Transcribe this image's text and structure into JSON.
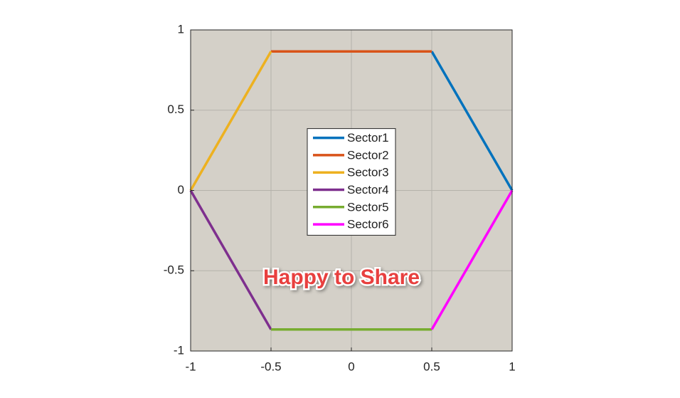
{
  "chart_data": {
    "type": "line",
    "annotation": "Happy to Share",
    "xlim": [
      -1,
      1
    ],
    "ylim": [
      -1,
      1
    ],
    "xticks": [
      -1,
      -0.5,
      0,
      0.5,
      1
    ],
    "yticks": [
      -1,
      -0.5,
      0,
      0.5,
      1
    ],
    "grid": true,
    "legend": "center",
    "series": [
      {
        "name": "Sector1",
        "color": "#0072bd",
        "x": [
          1,
          0.5
        ],
        "values": [
          0,
          0.866
        ]
      },
      {
        "name": "Sector2",
        "color": "#d95319",
        "x": [
          0.5,
          -0.5
        ],
        "values": [
          0.866,
          0.866
        ]
      },
      {
        "name": "Sector3",
        "color": "#edb120",
        "x": [
          -0.5,
          -1
        ],
        "values": [
          0.866,
          0
        ]
      },
      {
        "name": "Sector4",
        "color": "#7e2f8e",
        "x": [
          -1,
          -0.5
        ],
        "values": [
          0,
          -0.866
        ]
      },
      {
        "name": "Sector5",
        "color": "#77ac30",
        "x": [
          -0.5,
          0.5
        ],
        "values": [
          -0.866,
          -0.866
        ]
      },
      {
        "name": "Sector6",
        "color": "#ff00ff",
        "x": [
          0.5,
          1
        ],
        "values": [
          -0.866,
          0
        ]
      }
    ]
  }
}
